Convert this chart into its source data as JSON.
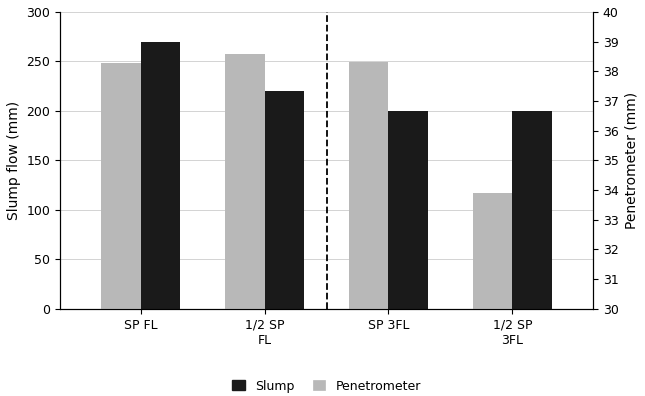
{
  "categories": [
    "SP FL",
    "1/2 SP\nFL",
    "SP 3FL",
    "1/2 SP\n3FL"
  ],
  "slump_values": [
    270,
    220,
    200,
    200
  ],
  "penetrometer_display_values": [
    248,
    258,
    249,
    117
  ],
  "slump_color": "#1a1a1a",
  "penetrometer_color": "#b8b8b8",
  "ylabel_left": "Slump flow (mm)",
  "ylabel_right": "Penetrometer (mm)",
  "ylim_left": [
    0,
    300
  ],
  "ylim_right": [
    30,
    40
  ],
  "yticks_left": [
    0,
    50,
    100,
    150,
    200,
    250,
    300
  ],
  "yticks_right": [
    30,
    31,
    32,
    33,
    34,
    35,
    36,
    37,
    38,
    39,
    40
  ],
  "bar_width": 0.32,
  "dashed_line_x": 1.5,
  "legend_labels": [
    "Slump",
    "Penetrometer"
  ],
  "background_color": "#ffffff",
  "grid_color": "#cccccc",
  "tick_label_fontsize": 9,
  "axis_label_fontsize": 10
}
